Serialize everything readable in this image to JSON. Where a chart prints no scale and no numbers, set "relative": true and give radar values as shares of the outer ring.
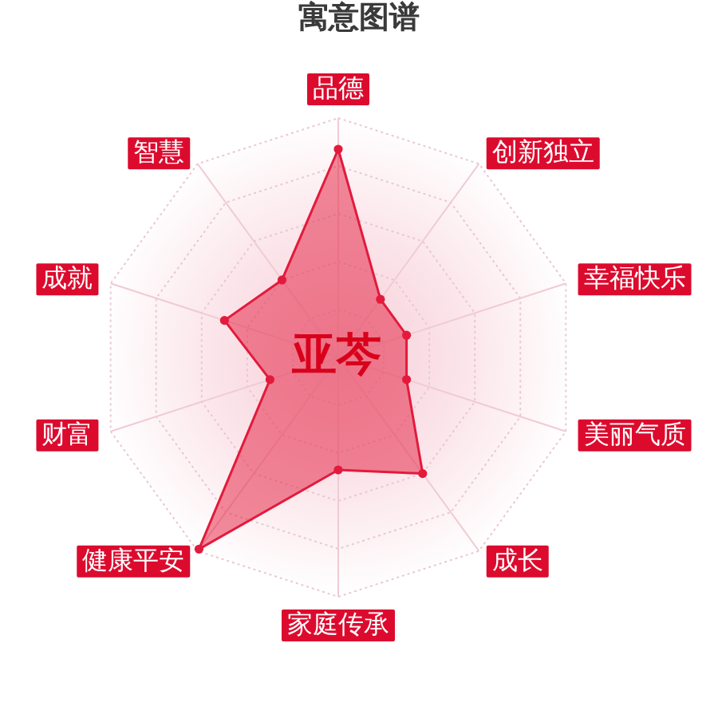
{
  "chart_data": {
    "type": "radar",
    "title": "寓意图谱",
    "categories": [
      "品德",
      "创新独立",
      "幸福快乐",
      "美丽气质",
      "成长",
      "家庭传承",
      "健康平安",
      "财富",
      "成就",
      "智慧"
    ],
    "relative": true,
    "series": [
      {
        "color": "#e31a3c",
        "values": [
          0.87,
          0.3,
          0.3,
          0.3,
          0.6,
          0.47,
          0.99,
          0.3,
          0.5,
          0.4
        ]
      }
    ],
    "annotations": [
      "亚芩"
    ],
    "grid": true,
    "marker": "circle"
  }
}
